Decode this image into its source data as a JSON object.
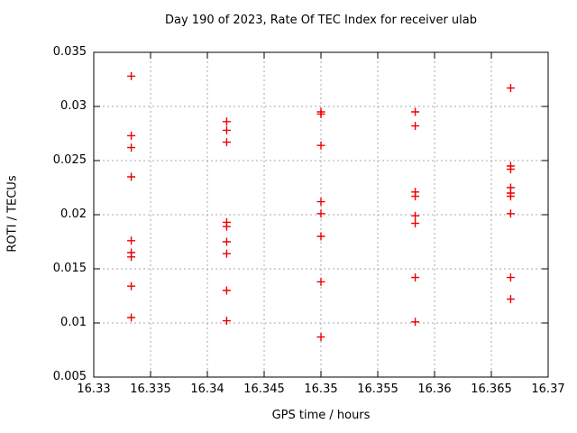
{
  "window": {
    "background": "#ffffff"
  },
  "chart_data": {
    "type": "scatter",
    "title": "Day 190 of 2023, Rate Of TEC Index for receiver ulab",
    "xlabel": "GPS time / hours",
    "ylabel": "ROTI / TECUs",
    "xlim": [
      16.33,
      16.37
    ],
    "ylim": [
      0.005,
      0.035
    ],
    "xticks": [
      16.33,
      16.335,
      16.34,
      16.345,
      16.35,
      16.355,
      16.36,
      16.365,
      16.37
    ],
    "xtick_labels": [
      "16.33",
      "16.335",
      "16.34",
      "16.345",
      "16.35",
      "16.355",
      "16.36",
      "16.365",
      "16.37"
    ],
    "yticks": [
      0.005,
      0.01,
      0.015,
      0.02,
      0.025,
      0.03,
      0.035
    ],
    "ytick_labels": [
      "0.005",
      "0.01",
      "0.015",
      "0.02",
      "0.025",
      "0.03",
      "0.035"
    ],
    "grid": true,
    "legend_position": "none",
    "marker": "plus",
    "colors": {
      "marker": "#ee0000",
      "grid": "#aaaaaa",
      "axis": "#000000",
      "text": "#000000"
    },
    "series": [
      {
        "name": "ROTI",
        "points": [
          [
            16.3333,
            0.0328
          ],
          [
            16.3333,
            0.0273
          ],
          [
            16.3333,
            0.0262
          ],
          [
            16.3333,
            0.0235
          ],
          [
            16.3333,
            0.0176
          ],
          [
            16.3333,
            0.0165
          ],
          [
            16.3333,
            0.0161
          ],
          [
            16.3333,
            0.0134
          ],
          [
            16.3333,
            0.0105
          ],
          [
            16.3417,
            0.0286
          ],
          [
            16.3417,
            0.0278
          ],
          [
            16.3417,
            0.0267
          ],
          [
            16.3417,
            0.0193
          ],
          [
            16.3417,
            0.0189
          ],
          [
            16.3417,
            0.0175
          ],
          [
            16.3417,
            0.0164
          ],
          [
            16.3417,
            0.013
          ],
          [
            16.3417,
            0.0102
          ],
          [
            16.35,
            0.0295
          ],
          [
            16.35,
            0.0293
          ],
          [
            16.35,
            0.0264
          ],
          [
            16.35,
            0.0212
          ],
          [
            16.35,
            0.0201
          ],
          [
            16.35,
            0.018
          ],
          [
            16.35,
            0.0138
          ],
          [
            16.35,
            0.0087
          ],
          [
            16.3583,
            0.0295
          ],
          [
            16.3583,
            0.0282
          ],
          [
            16.3583,
            0.0221
          ],
          [
            16.3583,
            0.0217
          ],
          [
            16.3583,
            0.0199
          ],
          [
            16.3583,
            0.0192
          ],
          [
            16.3583,
            0.0142
          ],
          [
            16.3583,
            0.0101
          ],
          [
            16.3667,
            0.0317
          ],
          [
            16.3667,
            0.0245
          ],
          [
            16.3667,
            0.0242
          ],
          [
            16.3667,
            0.0225
          ],
          [
            16.3667,
            0.022
          ],
          [
            16.3667,
            0.0217
          ],
          [
            16.3667,
            0.0201
          ],
          [
            16.3667,
            0.0142
          ],
          [
            16.3667,
            0.0122
          ]
        ]
      }
    ]
  }
}
